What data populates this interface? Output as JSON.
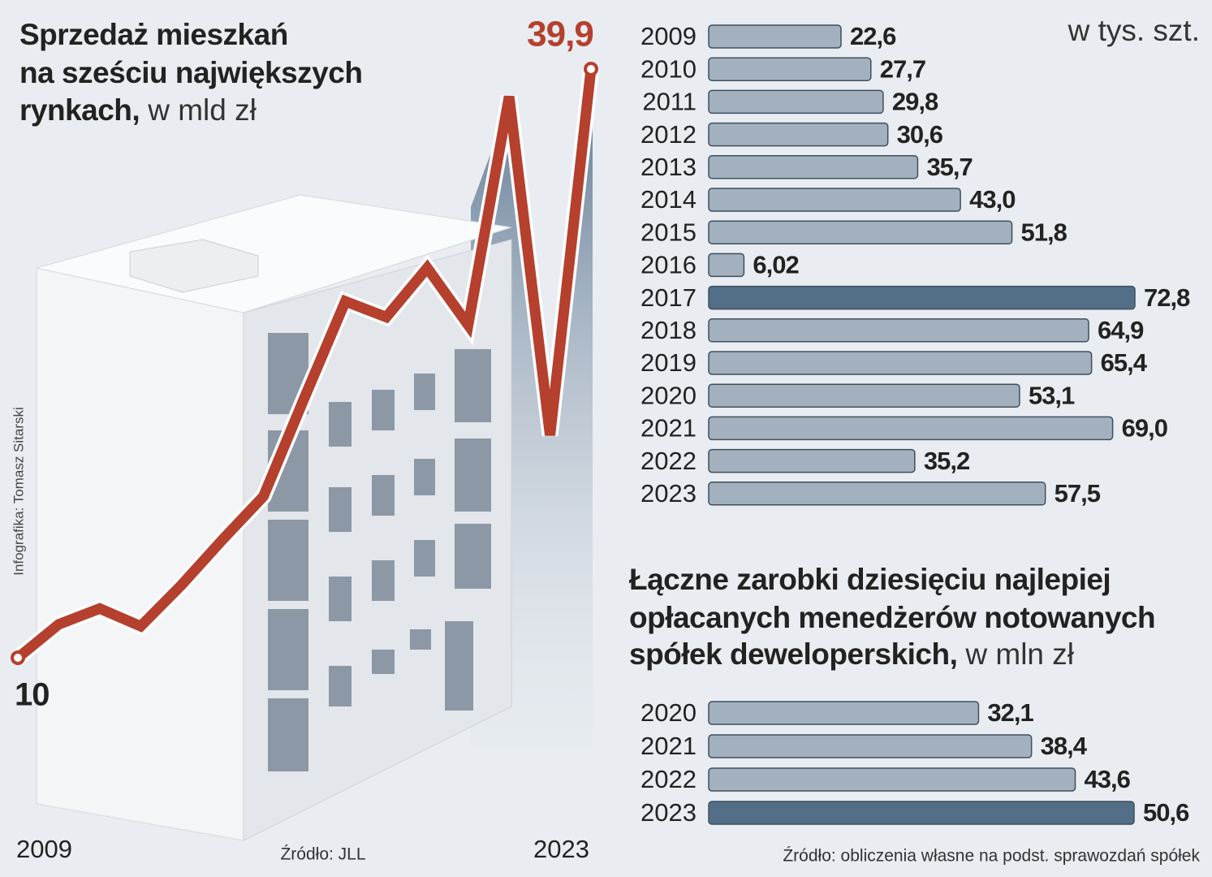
{
  "chart_data": [
    {
      "type": "line",
      "title": [
        "Sprzedaż mieszkań",
        "na sześciu największych",
        "rynkach,"
      ],
      "unit": "w mld zł",
      "categories": [
        "2009",
        null,
        null,
        null,
        null,
        null,
        null,
        null,
        null,
        null,
        null,
        null,
        null,
        null,
        "2023"
      ],
      "values": [
        10,
        11.7,
        12.5,
        11.6,
        13.7,
        16.0,
        18.2,
        23.2,
        28.1,
        27.3,
        29.8,
        26.9,
        38.5,
        21.3,
        39.9
      ],
      "value_labels": [
        "10",
        null,
        null,
        null,
        null,
        null,
        null,
        null,
        null,
        null,
        null,
        null,
        null,
        null,
        "39,9"
      ],
      "color": "#b5402e",
      "source": "Źródło: JLL",
      "credit": "Infografika: Tomasz Sitarski"
    },
    {
      "type": "hbar",
      "unit": "w tys. szt.",
      "categories": [
        "2009",
        "2010",
        "2011",
        "2012",
        "2013",
        "2014",
        "2015",
        "2016",
        "2017",
        "2018",
        "2019",
        "2020",
        "2021",
        "2022",
        "2023"
      ],
      "values": [
        22.6,
        27.7,
        29.8,
        30.6,
        35.7,
        43.0,
        51.8,
        6.02,
        72.8,
        64.9,
        65.4,
        53.1,
        69.0,
        35.2,
        57.5
      ],
      "value_labels": [
        "22,6",
        "27,7",
        "29,8",
        "30,6",
        "35,7",
        "43,0",
        "51,8",
        "6,02",
        "72,8",
        "64,9",
        "65,4",
        "53,1",
        "69,0",
        "35,2",
        "57,5"
      ],
      "colors": [
        "#a3b1bf",
        "#a3b1bf",
        "#a3b1bf",
        "#a3b1bf",
        "#a3b1bf",
        "#a3b1bf",
        "#a3b1bf",
        "#a3b1bf",
        "#536e87",
        "#a3b1bf",
        "#a3b1bf",
        "#a3b1bf",
        "#a3b1bf",
        "#a3b1bf",
        "#a3b1bf"
      ]
    },
    {
      "type": "hbar",
      "title": [
        "Łączne zarobki dziesięciu najlepiej",
        "opłacanych menedżerów notowanych",
        "spółek deweloperskich,"
      ],
      "unit": "w mln zł",
      "categories": [
        "2020",
        "2021",
        "2022",
        "2023"
      ],
      "values": [
        32.1,
        38.4,
        43.6,
        50.6
      ],
      "value_labels": [
        "32,1",
        "38,4",
        "43,6",
        "50,6"
      ],
      "colors": [
        "#a3b1bf",
        "#a3b1bf",
        "#a3b1bf",
        "#536e87"
      ],
      "source": "Źródło: obliczenia własne na podst. sprawozdań spółek"
    }
  ]
}
